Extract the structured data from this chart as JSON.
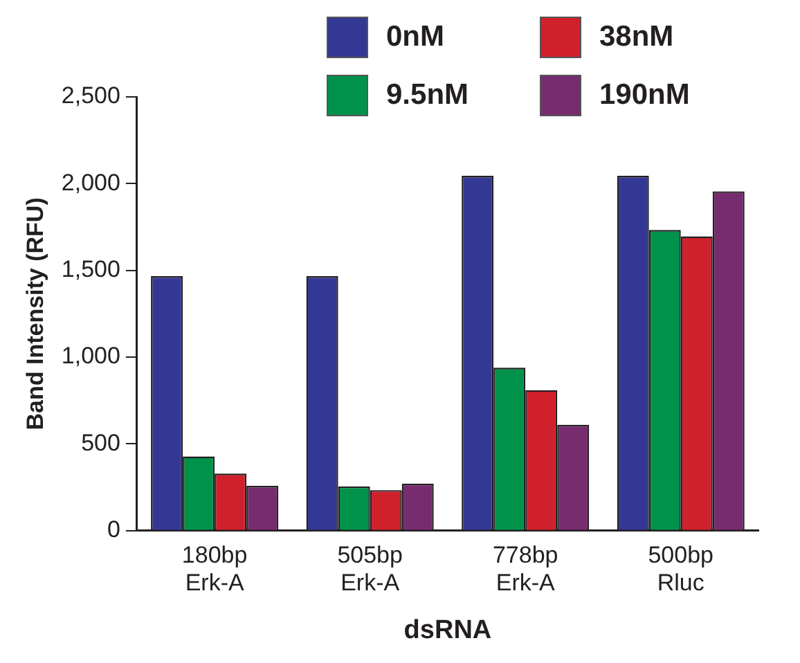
{
  "chart_data": {
    "type": "bar",
    "xlabel": "dsRNA",
    "ylabel": "Band Intensity (RFU)",
    "categories": [
      "180bp Erk-A",
      "505bp Erk-A",
      "778bp Erk-A",
      "500bp Rluc"
    ],
    "series": [
      {
        "name": "0nM",
        "color": "#343895",
        "values": [
          1467,
          1467,
          2045,
          2045
        ]
      },
      {
        "name": "9.5nM",
        "color": "#00914b",
        "values": [
          428,
          255,
          939,
          1733
        ]
      },
      {
        "name": "38nM",
        "color": "#d0202c",
        "values": [
          329,
          234,
          810,
          1696
        ]
      },
      {
        "name": "190nM",
        "color": "#762c6f",
        "values": [
          258,
          271,
          610,
          1956
        ]
      }
    ],
    "ylim": [
      0,
      2500
    ],
    "yticks": [
      {
        "value": 0,
        "label": "0"
      },
      {
        "value": 500,
        "label": "500"
      },
      {
        "value": 1000,
        "label": "1,000"
      },
      {
        "value": 1500,
        "label": "1,500"
      },
      {
        "value": 2000,
        "label": "2,000"
      },
      {
        "value": 2500,
        "label": "2,500"
      }
    ],
    "grid": false,
    "legend": "top"
  }
}
